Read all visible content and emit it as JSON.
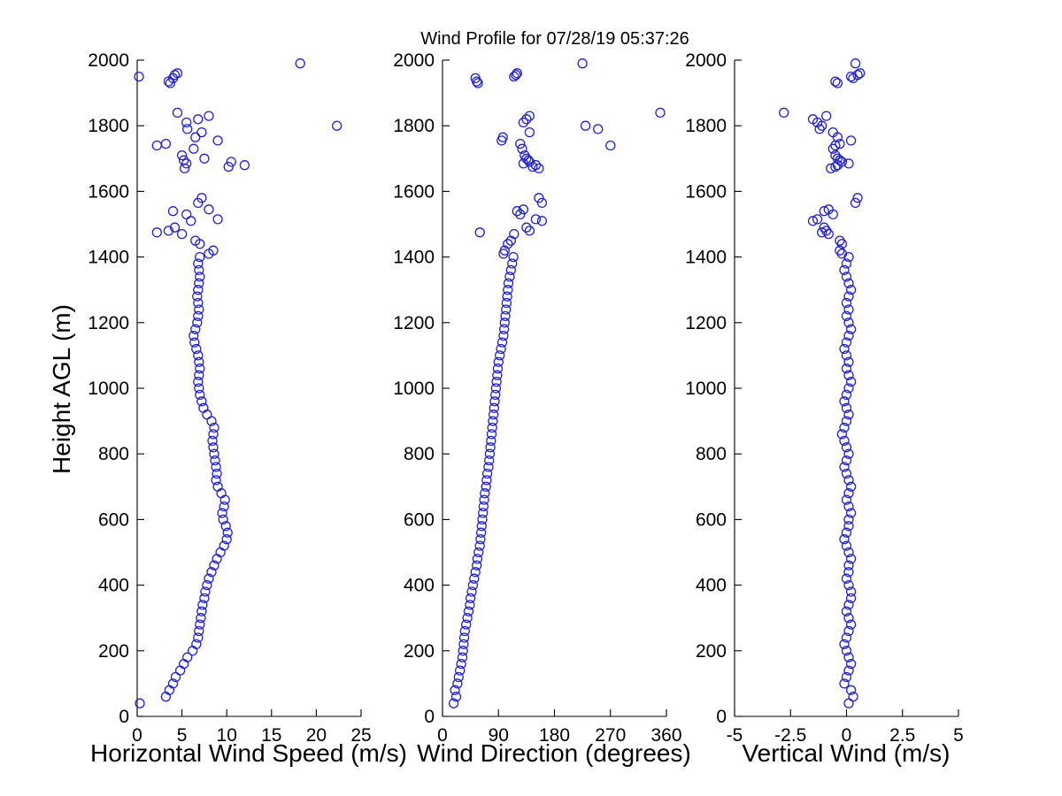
{
  "chart_data": {
    "type": "scatter",
    "title": "Wind Profile for  07/28/19 05:37:26",
    "ylabel": "Height AGL (m)",
    "ylim": [
      0,
      2000
    ],
    "yticks": [
      0,
      200,
      400,
      600,
      800,
      1000,
      1200,
      1400,
      1600,
      1800,
      2000
    ],
    "grid": false,
    "legend": "none",
    "marker": "open-circle",
    "marker_color": "#2222cc",
    "heights": [
      40,
      60,
      80,
      100,
      120,
      140,
      160,
      180,
      200,
      220,
      240,
      260,
      280,
      300,
      320,
      340,
      360,
      380,
      400,
      420,
      440,
      460,
      480,
      500,
      520,
      540,
      560,
      580,
      600,
      620,
      640,
      660,
      680,
      700,
      720,
      740,
      760,
      780,
      800,
      820,
      840,
      860,
      880,
      900,
      920,
      940,
      960,
      980,
      1000,
      1020,
      1040,
      1060,
      1080,
      1100,
      1120,
      1140,
      1160,
      1180,
      1200,
      1220,
      1240,
      1260,
      1280,
      1300,
      1320,
      1340,
      1360,
      1380,
      1400,
      1410,
      1420,
      1440,
      1450,
      1470,
      1475,
      1480,
      1490,
      1510,
      1515,
      1530,
      1540,
      1545,
      1565,
      1580,
      1670,
      1675,
      1680,
      1685,
      1690,
      1695,
      1700,
      1710,
      1730,
      1740,
      1745,
      1755,
      1765,
      1780,
      1790,
      1800,
      1810,
      1820,
      1830,
      1840,
      1930,
      1935,
      1945,
      1950,
      1955,
      1960,
      1990
    ],
    "subplots": [
      {
        "xlabel": "Horizontal Wind Speed (m/s)",
        "xlim": [
          0,
          25
        ],
        "xticks": [
          0,
          5,
          10,
          15,
          20,
          25
        ],
        "values": [
          0.3,
          3.2,
          3.6,
          4.0,
          4.3,
          4.8,
          5.2,
          5.6,
          6.2,
          6.6,
          6.8,
          6.9,
          7.0,
          7.1,
          7.2,
          7.3,
          7.5,
          7.6,
          7.8,
          8.0,
          8.3,
          8.6,
          8.9,
          9.3,
          9.7,
          10.0,
          10.1,
          9.9,
          9.6,
          9.5,
          9.7,
          9.8,
          9.4,
          9.0,
          8.8,
          8.9,
          8.8,
          8.7,
          8.6,
          8.5,
          8.4,
          8.5,
          8.6,
          8.3,
          7.8,
          7.4,
          7.2,
          7.0,
          6.9,
          6.8,
          6.9,
          7.0,
          6.9,
          6.8,
          6.6,
          6.4,
          6.3,
          6.5,
          6.7,
          6.8,
          6.9,
          6.8,
          6.7,
          6.8,
          6.9,
          7.0,
          6.9,
          6.8,
          7.0,
          8.0,
          8.5,
          7.0,
          6.5,
          5.0,
          2.2,
          3.5,
          4.2,
          6.0,
          9.0,
          5.5,
          4.0,
          8.0,
          6.8,
          7.2,
          5.3,
          10.2,
          12.0,
          5.5,
          10.5,
          5.2,
          7.5,
          5.0,
          6.3,
          2.2,
          3.2,
          9.0,
          6.5,
          7.2,
          5.6,
          22.3,
          5.5,
          6.8,
          8.0,
          4.5,
          3.7,
          3.5,
          4.0,
          0.2,
          4.2,
          4.5,
          18.2
        ]
      },
      {
        "xlabel": "Wind Direction (degrees)",
        "xlim": [
          0,
          360
        ],
        "xticks": [
          0,
          90,
          180,
          270,
          360
        ],
        "values": [
          18,
          22,
          20,
          24,
          26,
          28,
          30,
          32,
          33,
          34,
          35,
          36,
          38,
          40,
          42,
          44,
          45,
          47,
          49,
          51,
          53,
          55,
          56,
          58,
          60,
          61,
          62,
          63,
          64,
          65,
          66,
          67,
          68,
          70,
          71,
          72,
          74,
          75,
          76,
          77,
          78,
          79,
          80,
          81,
          82,
          83,
          84,
          85,
          86,
          87,
          88,
          89,
          90,
          92,
          94,
          96,
          98,
          99,
          100,
          101,
          102,
          103,
          104,
          105,
          106,
          108,
          110,
          112,
          114,
          98,
          100,
          105,
          110,
          115,
          60,
          140,
          135,
          160,
          150,
          125,
          120,
          130,
          160,
          155,
          155,
          145,
          150,
          130,
          140,
          138,
          135,
          132,
          128,
          270,
          125,
          95,
          97,
          140,
          250,
          230,
          130,
          135,
          140,
          350,
          57,
          55,
          53,
          115,
          118,
          120,
          225
        ]
      },
      {
        "xlabel": "Vertical Wind (m/s)",
        "xlim": [
          -5,
          5
        ],
        "xticks": [
          -5,
          -2.5,
          0,
          2.5,
          5
        ],
        "values": [
          0.1,
          0.3,
          0.2,
          -0.1,
          0.0,
          0.1,
          0.2,
          0.1,
          0.0,
          -0.1,
          0.0,
          0.1,
          0.2,
          0.1,
          0.0,
          0.1,
          0.2,
          0.2,
          0.1,
          0.0,
          0.1,
          0.1,
          0.2,
          0.1,
          0.0,
          -0.1,
          0.0,
          0.1,
          0.1,
          0.2,
          0.1,
          0.0,
          0.1,
          0.2,
          0.1,
          0.0,
          -0.1,
          0.0,
          0.1,
          0.0,
          -0.1,
          -0.2,
          -0.1,
          0.0,
          0.1,
          0.0,
          -0.1,
          0.0,
          0.1,
          0.2,
          0.1,
          0.0,
          0.1,
          0.0,
          -0.1,
          0.0,
          0.1,
          0.2,
          0.1,
          0.0,
          0.1,
          0.0,
          0.1,
          0.2,
          0.1,
          0.0,
          -0.1,
          0.0,
          0.1,
          -0.2,
          -0.3,
          -0.2,
          -0.3,
          -0.8,
          -1.1,
          -0.9,
          -1.0,
          -1.5,
          -1.3,
          -0.6,
          -1.0,
          -0.8,
          0.4,
          0.5,
          -0.7,
          -0.5,
          -0.4,
          0.1,
          -0.2,
          -0.3,
          -0.4,
          -0.5,
          -0.6,
          -0.5,
          -0.3,
          0.2,
          -0.4,
          -0.6,
          -1.2,
          -1.1,
          -1.3,
          -1.5,
          -0.9,
          -2.8,
          -0.4,
          -0.5,
          0.3,
          0.2,
          0.5,
          0.6,
          0.4
        ]
      }
    ]
  }
}
